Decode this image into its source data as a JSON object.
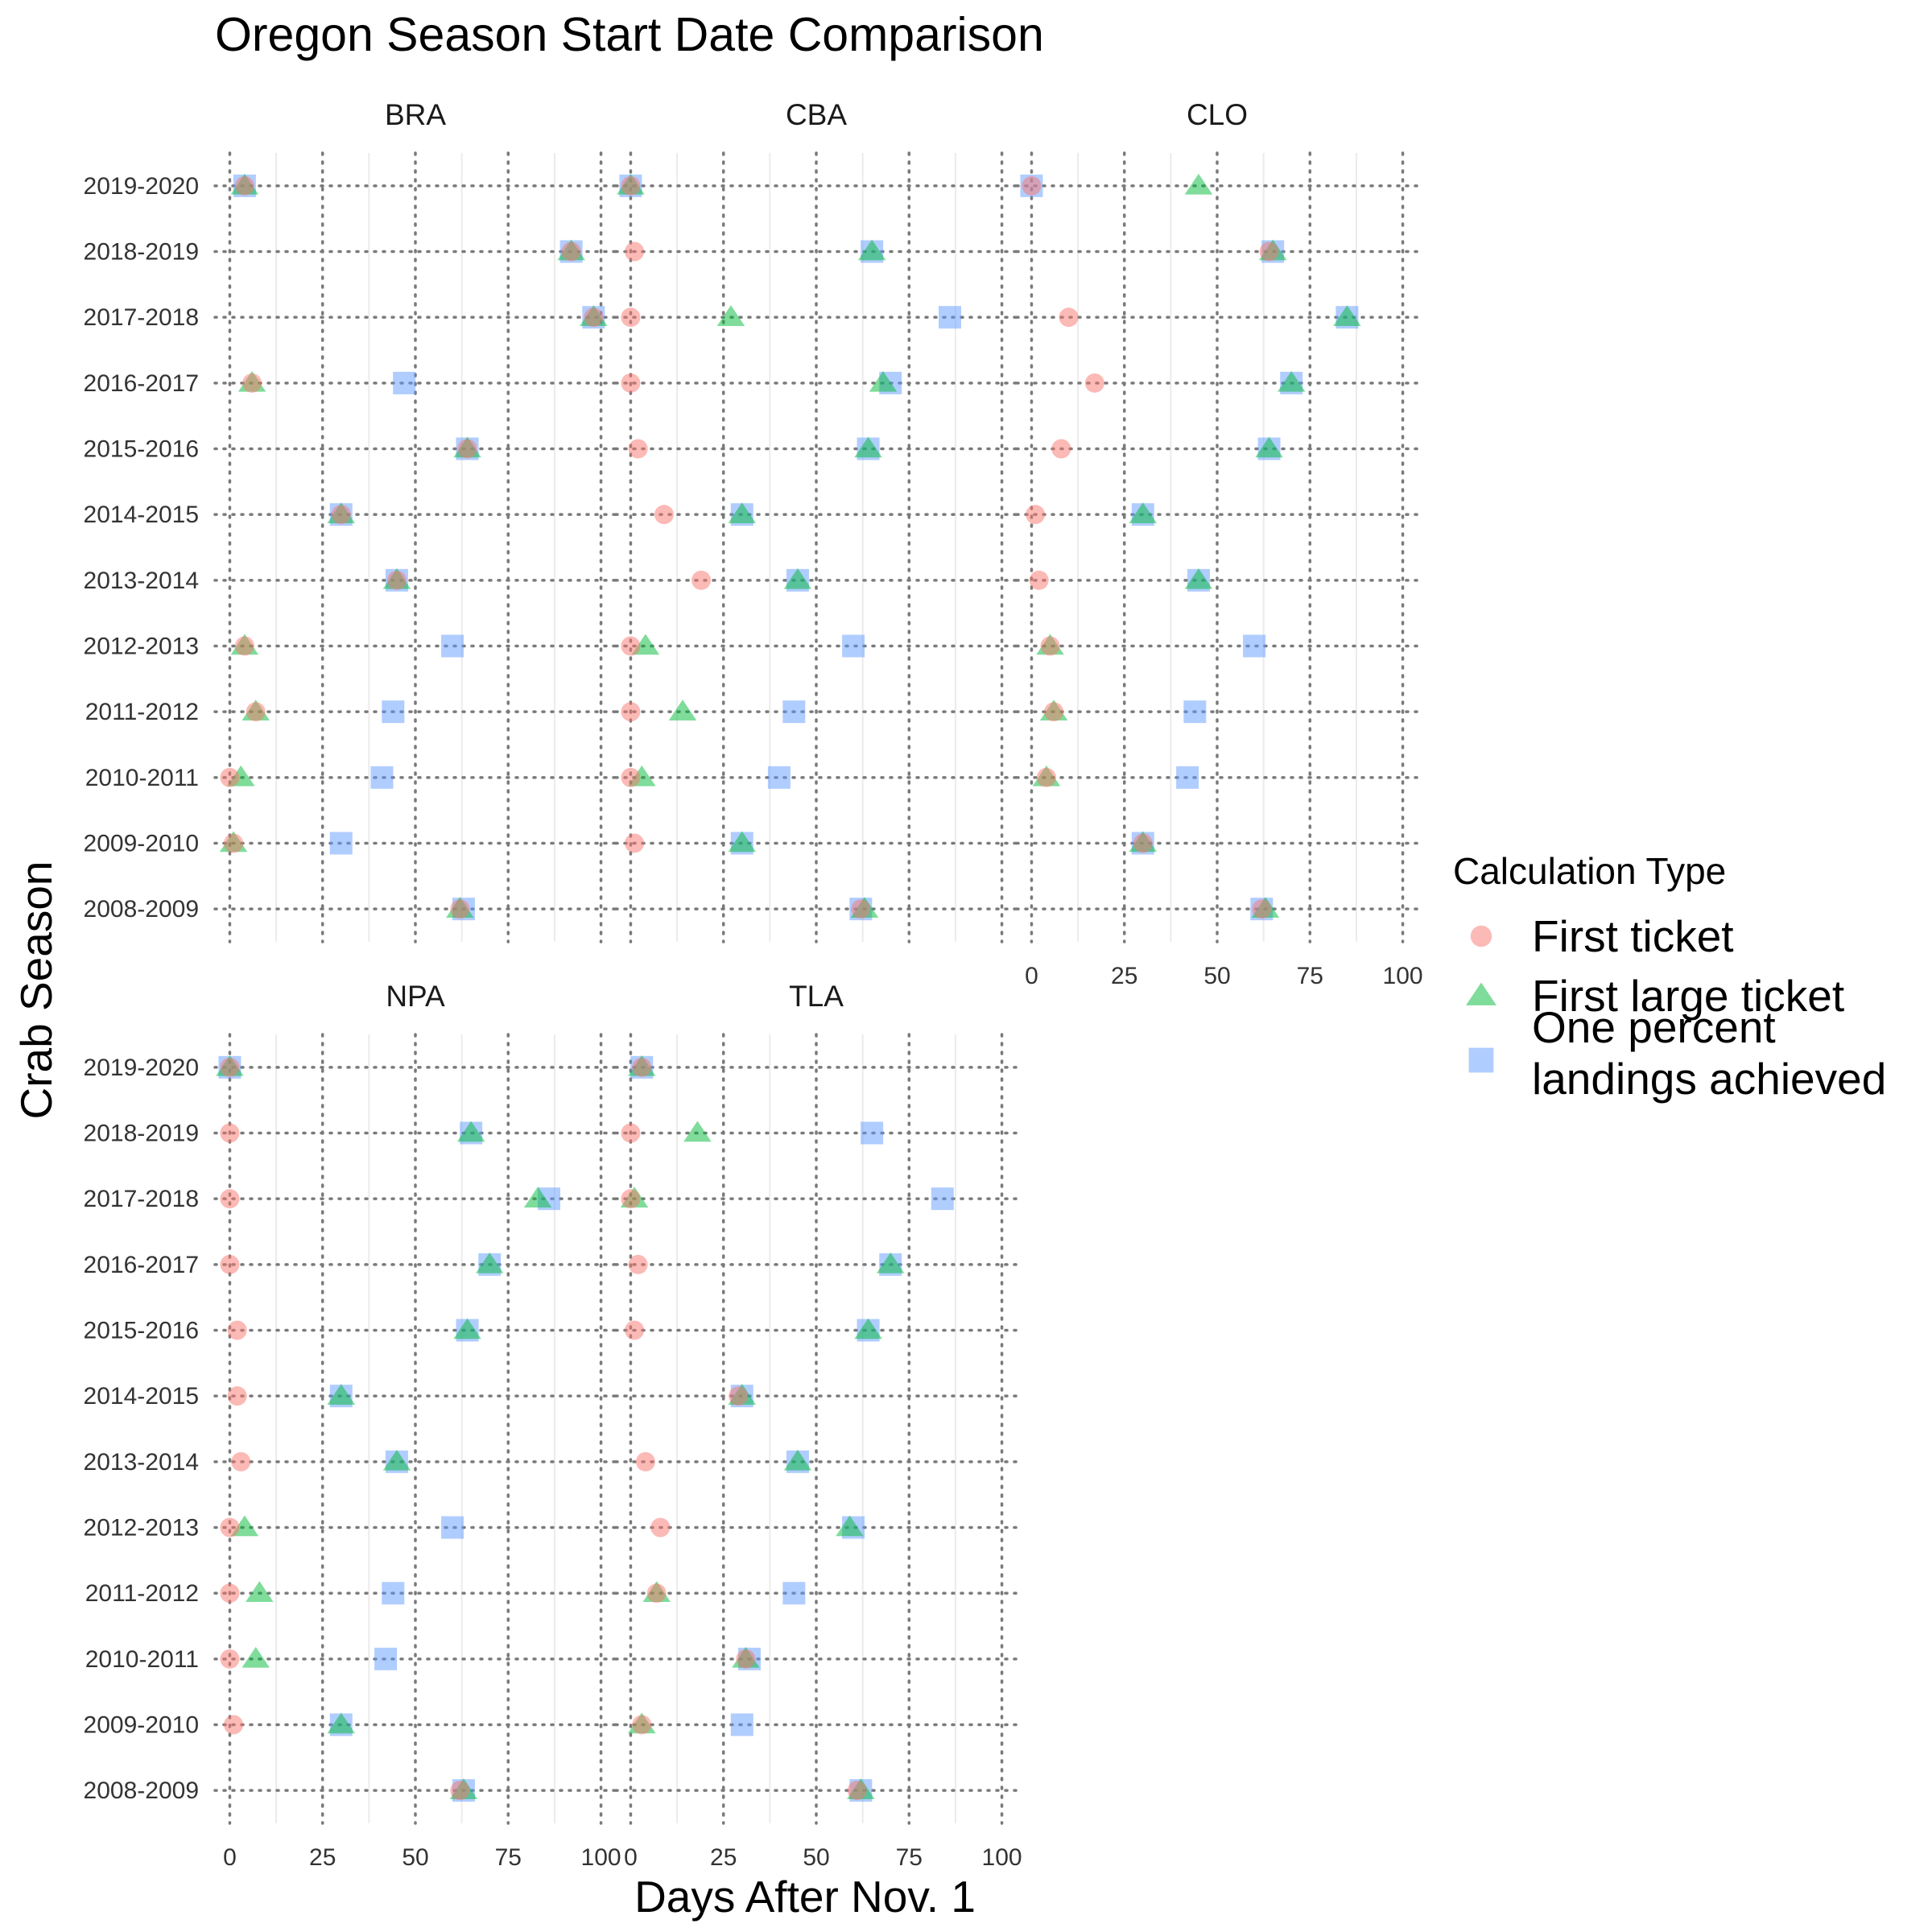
{
  "chart_data": {
    "type": "scatter",
    "title": "Oregon Season Start Date Comparison",
    "xlabel": "Days After Nov. 1",
    "ylabel": "Crab Season",
    "xlim": [
      -4,
      104
    ],
    "xticks": [
      0,
      25,
      50,
      75,
      100
    ],
    "seasons": [
      "2008-2009",
      "2009-2010",
      "2010-2011",
      "2011-2012",
      "2012-2013",
      "2013-2014",
      "2014-2015",
      "2015-2016",
      "2016-2017",
      "2017-2018",
      "2018-2019",
      "2019-2020"
    ],
    "grid": "dotted major grid, light minor x grid",
    "legend": {
      "title": "Calculation Type",
      "position": "right",
      "entries": [
        {
          "key": "first",
          "label": "First ticket",
          "shape": "circle",
          "color": "#F8766D"
        },
        {
          "key": "large",
          "label": "First large ticket",
          "shape": "triangle",
          "color": "#00BA38"
        },
        {
          "key": "pct",
          "label_lines": [
            "One percent",
            "landings achieved"
          ],
          "shape": "square",
          "color": "#619CFF"
        }
      ]
    },
    "panels": [
      {
        "name": "BRA",
        "first": [
          62,
          1,
          0,
          7,
          4,
          45,
          30,
          64,
          6,
          98,
          92,
          4
        ],
        "large": [
          62,
          1,
          3,
          7,
          4,
          45,
          30,
          64,
          6,
          98,
          92,
          4
        ],
        "pct": [
          63,
          30,
          41,
          44,
          60,
          45,
          30,
          64,
          47,
          98,
          92,
          4
        ]
      },
      {
        "name": "CBA",
        "first": [
          62,
          1,
          0,
          0,
          0,
          19,
          9,
          2,
          0,
          0,
          1,
          0
        ],
        "large": [
          63,
          30,
          3,
          14,
          4,
          45,
          30,
          64,
          68,
          27,
          65,
          0
        ],
        "pct": [
          62,
          30,
          40,
          44,
          60,
          45,
          30,
          64,
          70,
          86,
          65,
          0
        ]
      },
      {
        "name": "CLO",
        "first": [
          62,
          30,
          4,
          6,
          5,
          2,
          1,
          8,
          17,
          10,
          64,
          0
        ],
        "large": [
          63,
          30,
          4,
          6,
          5,
          45,
          30,
          64,
          70,
          85,
          65,
          45
        ],
        "pct": [
          62,
          30,
          42,
          44,
          60,
          45,
          30,
          64,
          70,
          85,
          65,
          0
        ]
      },
      {
        "name": "NPA",
        "first": [
          62,
          1,
          0,
          0,
          0,
          3,
          2,
          2,
          0,
          0,
          0,
          0
        ],
        "large": [
          63,
          30,
          7,
          8,
          4,
          45,
          30,
          64,
          70,
          83,
          65,
          0
        ],
        "pct": [
          63,
          30,
          42,
          44,
          60,
          45,
          30,
          64,
          70,
          86,
          65,
          0
        ]
      },
      {
        "name": "TLA",
        "first": [
          61,
          3,
          31,
          7,
          8,
          4,
          29,
          1,
          2,
          0,
          0,
          3
        ],
        "large": [
          62,
          3,
          31,
          7,
          59,
          45,
          30,
          64,
          70,
          1,
          18,
          3
        ],
        "pct": [
          62,
          30,
          32,
          44,
          60,
          45,
          30,
          64,
          70,
          84,
          65,
          3
        ]
      }
    ]
  }
}
